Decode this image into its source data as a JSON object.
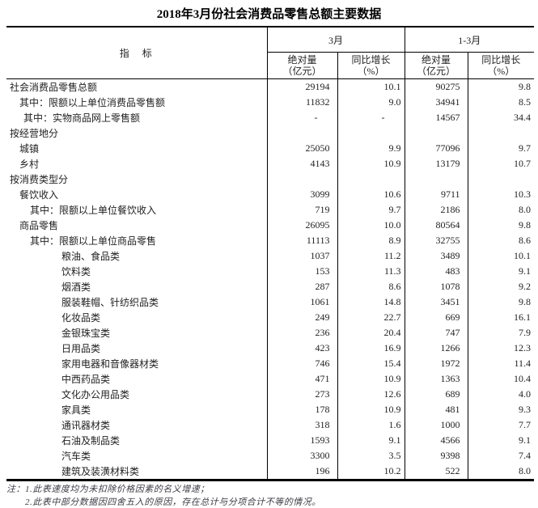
{
  "title": "2018年3月份社会消费品零售总额主要数据",
  "table": {
    "header": {
      "indicator": "指　标",
      "group1": "3月",
      "group2": "1-3月",
      "abs_line1": "绝对量",
      "abs_line2": "（亿元）",
      "yoy_line1": "同比增长",
      "yoy_line2": "（%）"
    },
    "rows": [
      {
        "label": "社会消费品零售总额",
        "indent": 0,
        "values": [
          "29194",
          "10.1",
          "90275",
          "9.8"
        ]
      },
      {
        "label": "其中：限额以上单位消费品零售额",
        "indent": 1,
        "values": [
          "11832",
          "9.0",
          "34941",
          "8.5"
        ]
      },
      {
        "label": "其中：实物商品网上零售额",
        "indent": 2,
        "values": [
          "-",
          "-",
          "14567",
          "34.4"
        ]
      },
      {
        "label": "按经营地分",
        "indent": 0,
        "values": [
          "",
          "",
          "",
          ""
        ]
      },
      {
        "label": "城镇",
        "indent": 1,
        "values": [
          "25050",
          "9.9",
          "77096",
          "9.7"
        ]
      },
      {
        "label": "乡村",
        "indent": 1,
        "values": [
          "4143",
          "10.9",
          "13179",
          "10.7"
        ]
      },
      {
        "label": "按消费类型分",
        "indent": 0,
        "values": [
          "",
          "",
          "",
          ""
        ]
      },
      {
        "label": "餐饮收入",
        "indent": 1,
        "values": [
          "3099",
          "10.6",
          "9711",
          "10.3"
        ]
      },
      {
        "label": "其中：限额以上单位餐饮收入",
        "indent": 3,
        "values": [
          "719",
          "9.7",
          "2186",
          "8.0"
        ]
      },
      {
        "label": "商品零售",
        "indent": 1,
        "values": [
          "26095",
          "10.0",
          "80564",
          "9.8"
        ]
      },
      {
        "label": "其中：限额以上单位商品零售",
        "indent": 3,
        "values": [
          "11113",
          "8.9",
          "32755",
          "8.6"
        ]
      },
      {
        "label": "粮油、食品类",
        "indent": 4,
        "values": [
          "1037",
          "11.2",
          "3489",
          "10.1"
        ]
      },
      {
        "label": "饮料类",
        "indent": 4,
        "values": [
          "153",
          "11.3",
          "483",
          "9.1"
        ]
      },
      {
        "label": "烟酒类",
        "indent": 4,
        "values": [
          "287",
          "8.6",
          "1078",
          "9.2"
        ]
      },
      {
        "label": "服装鞋帽、针纺织品类",
        "indent": 4,
        "values": [
          "1061",
          "14.8",
          "3451",
          "9.8"
        ]
      },
      {
        "label": "化妆品类",
        "indent": 4,
        "values": [
          "249",
          "22.7",
          "669",
          "16.1"
        ]
      },
      {
        "label": "金银珠宝类",
        "indent": 4,
        "values": [
          "236",
          "20.4",
          "747",
          "7.9"
        ]
      },
      {
        "label": "日用品类",
        "indent": 4,
        "values": [
          "423",
          "16.9",
          "1266",
          "12.3"
        ]
      },
      {
        "label": "家用电器和音像器材类",
        "indent": 4,
        "values": [
          "746",
          "15.4",
          "1972",
          "11.4"
        ]
      },
      {
        "label": "中西药品类",
        "indent": 4,
        "values": [
          "471",
          "10.9",
          "1363",
          "10.4"
        ]
      },
      {
        "label": "文化办公用品类",
        "indent": 4,
        "values": [
          "273",
          "12.6",
          "689",
          "4.0"
        ]
      },
      {
        "label": "家具类",
        "indent": 4,
        "values": [
          "178",
          "10.9",
          "481",
          "9.3"
        ]
      },
      {
        "label": "通讯器材类",
        "indent": 4,
        "values": [
          "318",
          "1.6",
          "1000",
          "7.7"
        ]
      },
      {
        "label": "石油及制品类",
        "indent": 4,
        "values": [
          "1593",
          "9.1",
          "4566",
          "9.1"
        ]
      },
      {
        "label": "汽车类",
        "indent": 4,
        "values": [
          "3300",
          "3.5",
          "9398",
          "7.4"
        ]
      },
      {
        "label": "建筑及装潢材料类",
        "indent": 4,
        "values": [
          "196",
          "10.2",
          "522",
          "8.0"
        ]
      }
    ]
  },
  "notes": {
    "prefix": "注：",
    "items": [
      "1.此表速度均为未扣除价格因素的名义增速；",
      "2.此表中部分数据因四舍五入的原因，存在总计与分项合计不等的情况。"
    ]
  },
  "colors": {
    "border": "#000000",
    "text": "#222222",
    "note_text": "#3d3d46"
  }
}
